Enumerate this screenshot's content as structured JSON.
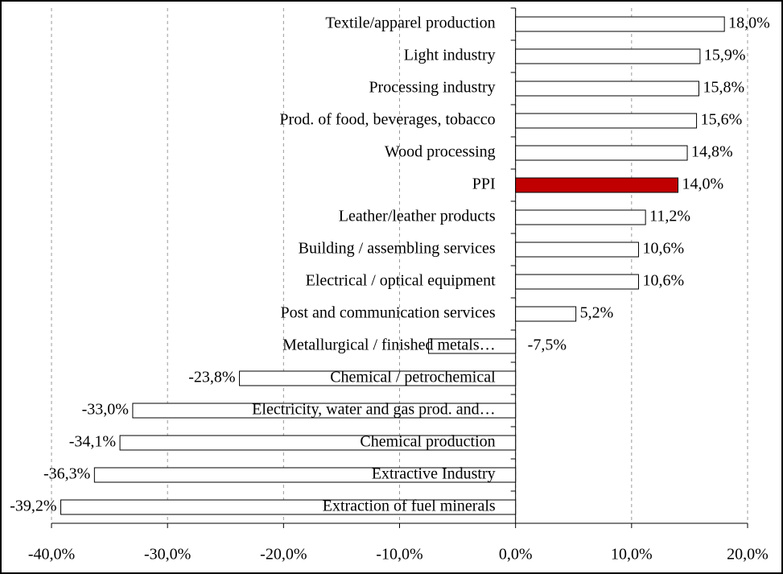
{
  "chart_data": {
    "type": "barh",
    "categories": [
      "Textile/apparel production",
      "Light industry",
      "Processing industry",
      "Prod. of food, beverages, tobacco",
      "Wood processing",
      "PPI",
      "Leather/leather products",
      "Building / assembling services",
      "Electrical / optical equipment",
      "Post and communication services",
      "Metallurgical / finished metals…",
      "Chemical / petrochemical",
      "Electricity, water and gas prod. and…",
      "Chemical production",
      "Extractive Industry",
      "Extraction of fuel minerals"
    ],
    "values": [
      18.0,
      15.9,
      15.8,
      15.6,
      14.8,
      14.0,
      11.2,
      10.6,
      10.6,
      5.2,
      -7.5,
      -23.8,
      -33.0,
      -34.1,
      -36.3,
      -39.2
    ],
    "value_labels": [
      "18,0%",
      "15,9%",
      "15,8%",
      "15,6%",
      "14,8%",
      "14,0%",
      "11,2%",
      "10,6%",
      "10,6%",
      "5,2%",
      "-7,5%",
      "-23,8%",
      "-33,0%",
      "-34,1%",
      "-36,3%",
      "-39,2%"
    ],
    "colors": [
      "#ffffff",
      "#ffffff",
      "#ffffff",
      "#ffffff",
      "#ffffff",
      "#c00000",
      "#ffffff",
      "#ffffff",
      "#ffffff",
      "#ffffff",
      "#ffffff",
      "#ffffff",
      "#ffffff",
      "#ffffff",
      "#ffffff",
      "#ffffff"
    ],
    "xlim": [
      -40,
      20
    ],
    "xticks": [
      {
        "value": -40,
        "label": "-40,0%"
      },
      {
        "value": -30,
        "label": "-30,0%"
      },
      {
        "value": -20,
        "label": "-20,0%"
      },
      {
        "value": -10,
        "label": "-10,0%"
      },
      {
        "value": 0,
        "label": "0,0%"
      },
      {
        "value": 10,
        "label": "10,0%"
      },
      {
        "value": 20,
        "label": "20,0%"
      }
    ],
    "grid": true
  }
}
